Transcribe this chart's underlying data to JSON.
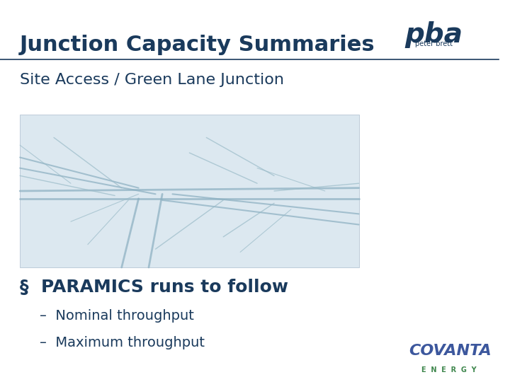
{
  "title": "Junction Capacity Summaries",
  "subtitle": "Site Access / Green Lane Junction",
  "bullet_header": "§  PARAMICS runs to follow",
  "bullet_items": [
    "–  Nominal throughput",
    "–  Maximum throughput"
  ],
  "title_color": "#1a3a5c",
  "title_fontsize": 22,
  "subtitle_fontsize": 16,
  "bullet_header_fontsize": 18,
  "bullet_item_fontsize": 14,
  "background_color": "#ffffff",
  "separator_color": "#1a3a5c",
  "text_color": "#1a3a5c",
  "image_bg_color": "#dce8f0"
}
